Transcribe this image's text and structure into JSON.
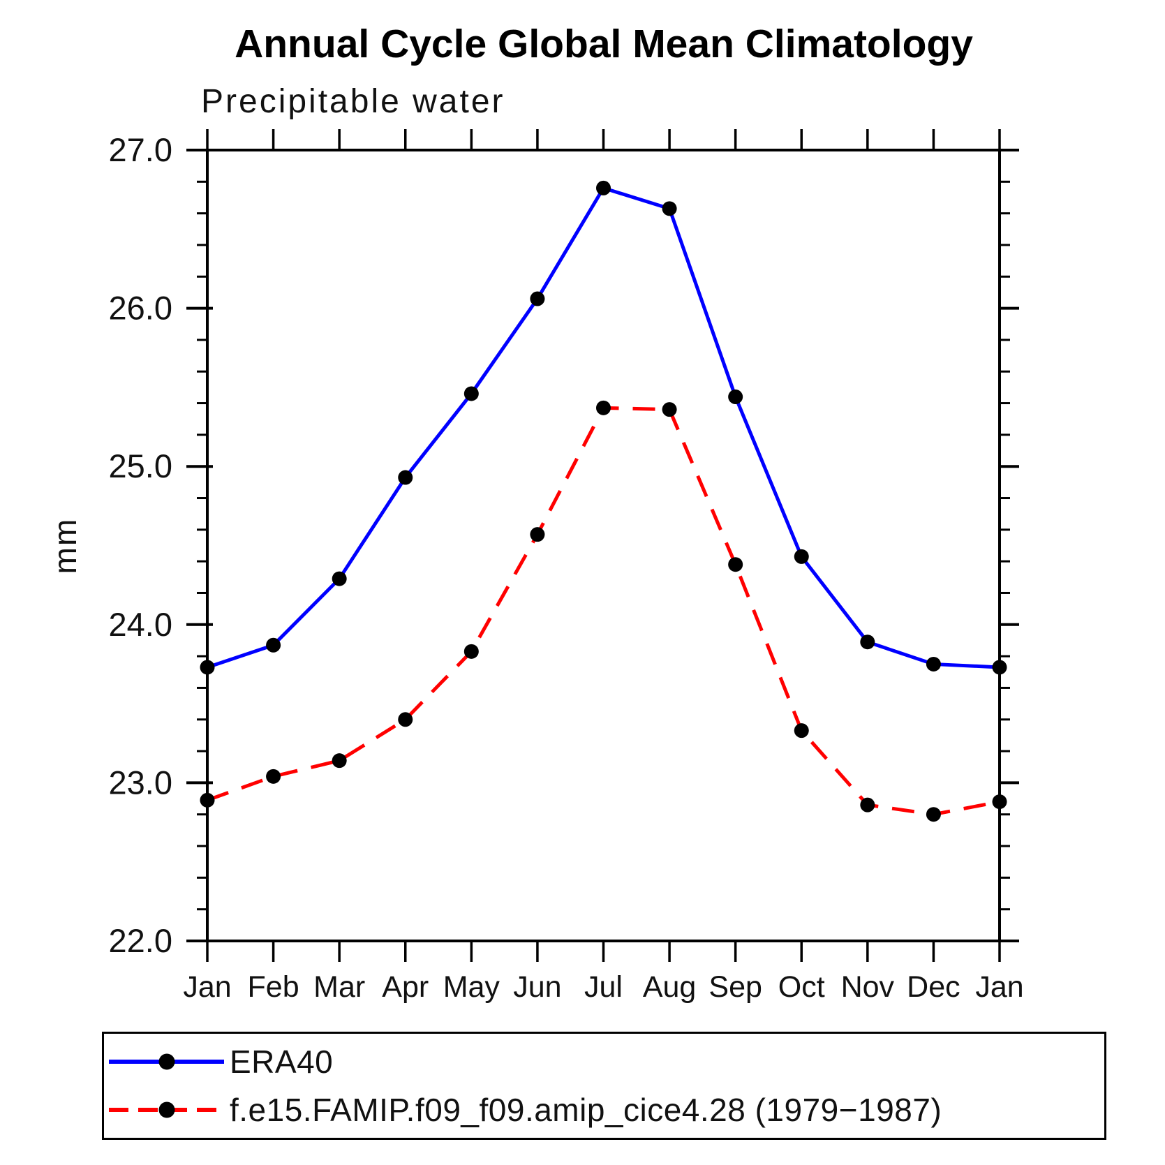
{
  "title": "Annual Cycle Global Mean Climatology",
  "subtitle": "Precipitable water",
  "chart_data": {
    "type": "line",
    "title": "Annual Cycle Global Mean Climatology",
    "subtitle": "Precipitable water",
    "xlabel": "",
    "ylabel": "mm",
    "x_categories": [
      "Jan",
      "Feb",
      "Mar",
      "Apr",
      "May",
      "Jun",
      "Jul",
      "Aug",
      "Sep",
      "Oct",
      "Nov",
      "Dec",
      "Jan"
    ],
    "ylim": [
      22.0,
      27.0
    ],
    "ytick_values": [
      22,
      23,
      24,
      25,
      26,
      27
    ],
    "ytick_labels": [
      "22.0",
      "23.0",
      "24.0",
      "25.0",
      "26.0",
      "27.0"
    ],
    "ytick_minor_step": 0.2,
    "grid": false,
    "frame": "full-box-with-outward-ticks",
    "legend_position": "bottom-left-box",
    "axis_color": "#000000",
    "marker_shape": "filled-circle",
    "series": [
      {
        "name": "ERA40",
        "color": "#0000ff",
        "line_style": "solid",
        "marker_color": "#000000",
        "values": [
          23.73,
          23.87,
          24.29,
          24.93,
          25.46,
          26.06,
          26.76,
          26.63,
          25.44,
          24.43,
          23.89,
          23.75,
          23.73
        ]
      },
      {
        "name": "f.e15.FAMIP.f09_f09.amip_cice4.28 (1979−1987)",
        "color": "#ff0000",
        "line_style": "dashed",
        "marker_color": "#000000",
        "values": [
          22.89,
          23.04,
          23.14,
          23.4,
          23.83,
          24.57,
          25.37,
          25.36,
          24.38,
          23.33,
          22.86,
          22.8,
          22.88
        ]
      }
    ]
  }
}
